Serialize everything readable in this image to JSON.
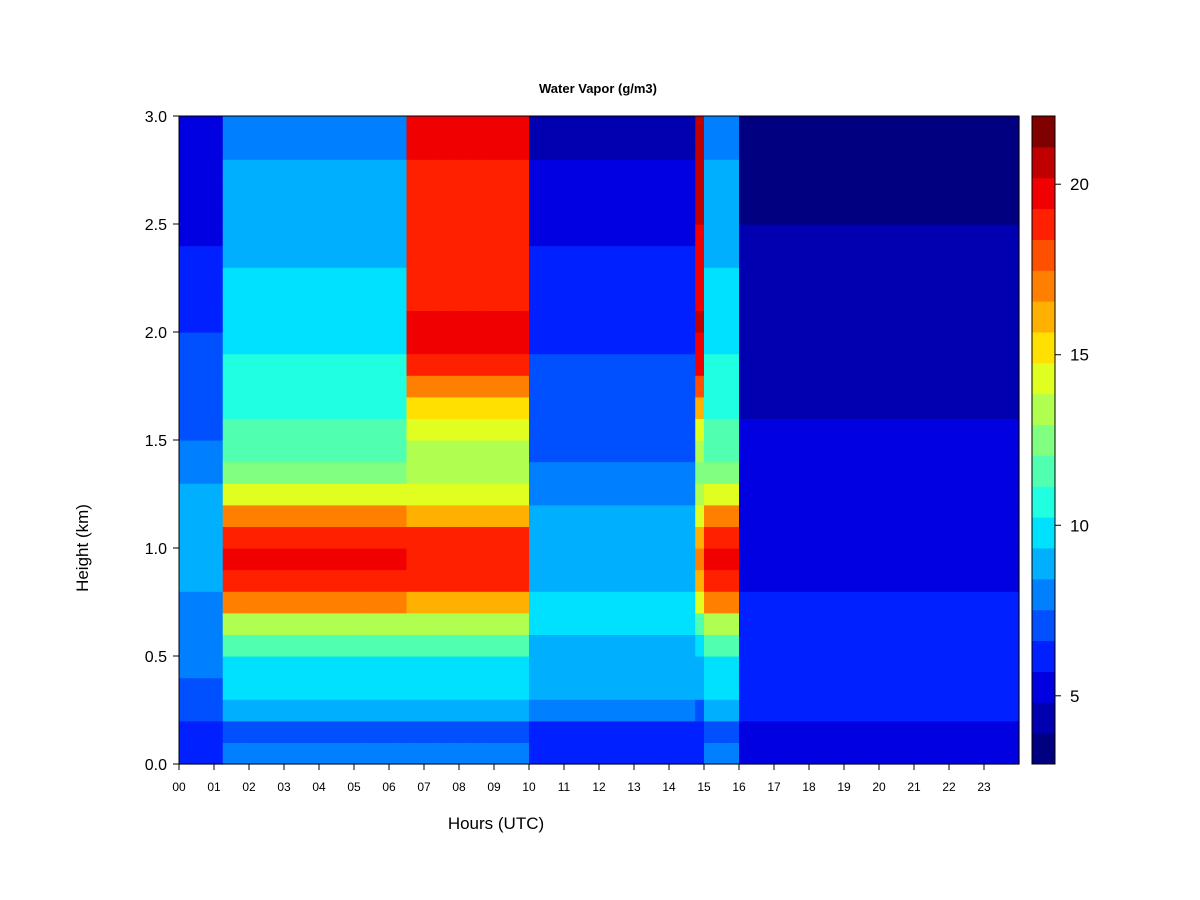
{
  "chart_data": {
    "type": "heatmap",
    "title": "Water Vapor (g/m3)",
    "xlabel": "Hours (UTC)",
    "ylabel": "Height (km)",
    "xlim": [
      0,
      24
    ],
    "ylim": [
      0,
      3.0
    ],
    "x_tick_labels": [
      "00",
      "01",
      "02",
      "03",
      "04",
      "05",
      "06",
      "07",
      "08",
      "09",
      "10",
      "11",
      "12",
      "13",
      "14",
      "15",
      "16",
      "17",
      "18",
      "19",
      "20",
      "21",
      "22",
      "23"
    ],
    "y_tick_labels": [
      "0.0",
      "0.5",
      "1.0",
      "1.5",
      "2.0",
      "2.5",
      "3.0"
    ],
    "colorbar": {
      "range": [
        3,
        22
      ],
      "tick_labels": [
        "5",
        "10",
        "15",
        "20"
      ],
      "tick_values": [
        5,
        10,
        15,
        20
      ],
      "colors": [
        "#000080",
        "#0000b0",
        "#0000e0",
        "#0020ff",
        "#0050ff",
        "#0080ff",
        "#00b0ff",
        "#00e0ff",
        "#20ffe0",
        "#50ffb0",
        "#80ff80",
        "#b0ff50",
        "#e0ff20",
        "#ffe000",
        "#ffb000",
        "#ff8000",
        "#ff5000",
        "#ff2000",
        "#f00000",
        "#c00000",
        "#800000"
      ]
    },
    "x": [
      0,
      0.5,
      1,
      1.25,
      1.5,
      1.75,
      2,
      2.5,
      3,
      3.5,
      4,
      4.5,
      5,
      5.25,
      5.5,
      6,
      6.25,
      6.5,
      6.75,
      7,
      7.25,
      7.5,
      7.75,
      8,
      8.25,
      8.5,
      8.75,
      9,
      9.5,
      9.75,
      10,
      10.5,
      11,
      12,
      13,
      14,
      14.5,
      14.75,
      14.9,
      15,
      15.25,
      15.5,
      15.75,
      16,
      16.5,
      17,
      18,
      19,
      20,
      21,
      22,
      23,
      23.5,
      23.8
    ],
    "y": [
      0,
      0.1,
      0.2,
      0.3,
      0.4,
      0.5,
      0.6,
      0.7,
      0.8,
      0.9,
      1.0,
      1.1,
      1.2,
      1.3,
      1.4,
      1.5,
      1.6,
      1.7,
      1.8,
      1.9,
      2.0,
      2.1,
      2.2,
      2.3,
      2.4,
      2.5,
      2.6,
      2.7,
      2.8,
      2.9,
      3.0
    ],
    "z_profiles": {
      "dry_early": [
        6.5,
        6.3,
        7.0,
        7.5,
        7.6,
        7.8,
        8.0,
        8.2,
        8.5,
        8.7,
        8.8,
        8.8,
        8.6,
        8.2,
        7.8,
        7.5,
        7.3,
        7.1,
        7.0,
        6.8,
        6.6,
        6.3,
        6.0,
        5.8,
        5.6,
        5.5,
        5.3,
        5.1,
        5.0,
        4.9,
        4.8
      ],
      "moist": [
        8.0,
        7.5,
        8.8,
        9.8,
        10.2,
        11.2,
        13.5,
        17.0,
        19.0,
        19.5,
        19.2,
        17.0,
        14.5,
        12.5,
        11.8,
        11.3,
        10.9,
        10.5,
        10.3,
        10.0,
        9.8,
        9.6,
        9.4,
        9.2,
        9.0,
        8.8,
        8.6,
        8.5,
        8.3,
        8.2,
        8.1
      ],
      "moist_plume": [
        8.0,
        7.5,
        8.8,
        9.8,
        10.2,
        11.2,
        13.0,
        16.5,
        18.5,
        19.0,
        18.5,
        16.5,
        14.5,
        13.5,
        13.5,
        14.0,
        15.5,
        17.0,
        18.5,
        19.5,
        19.5,
        19.0,
        18.5,
        18.5,
        18.5,
        18.5,
        19.0,
        19.0,
        19.5,
        19.5,
        19.5
      ],
      "plume_1445": [
        6.0,
        6.0,
        7.5,
        8.5,
        9.0,
        10.0,
        12.0,
        14.5,
        16.5,
        17.0,
        16.5,
        14.5,
        13.0,
        12.5,
        13.0,
        14.5,
        16.5,
        18.0,
        19.5,
        20.0,
        20.5,
        20.0,
        19.5,
        20.0,
        20.0,
        20.5,
        21.0,
        21.0,
        21.0,
        21.0,
        21.0
      ],
      "mid_day": [
        6.5,
        6.3,
        7.8,
        8.8,
        9.2,
        9.3,
        9.5,
        9.5,
        9.3,
        9.0,
        8.8,
        8.5,
        8.2,
        7.8,
        7.5,
        7.3,
        7.1,
        7.0,
        6.8,
        6.6,
        6.4,
        6.2,
        6.0,
        5.8,
        5.6,
        5.4,
        5.2,
        5.0,
        4.8,
        4.6,
        4.5
      ],
      "late_dry": [
        5.2,
        5.5,
        6.0,
        6.2,
        6.2,
        6.2,
        6.0,
        5.8,
        5.6,
        5.5,
        5.4,
        5.3,
        5.2,
        5.1,
        5.0,
        4.9,
        4.8,
        4.7,
        4.6,
        4.5,
        4.4,
        4.3,
        4.2,
        4.1,
        4.0,
        3.9,
        3.8,
        3.8,
        3.7,
        3.6,
        3.6
      ]
    }
  }
}
